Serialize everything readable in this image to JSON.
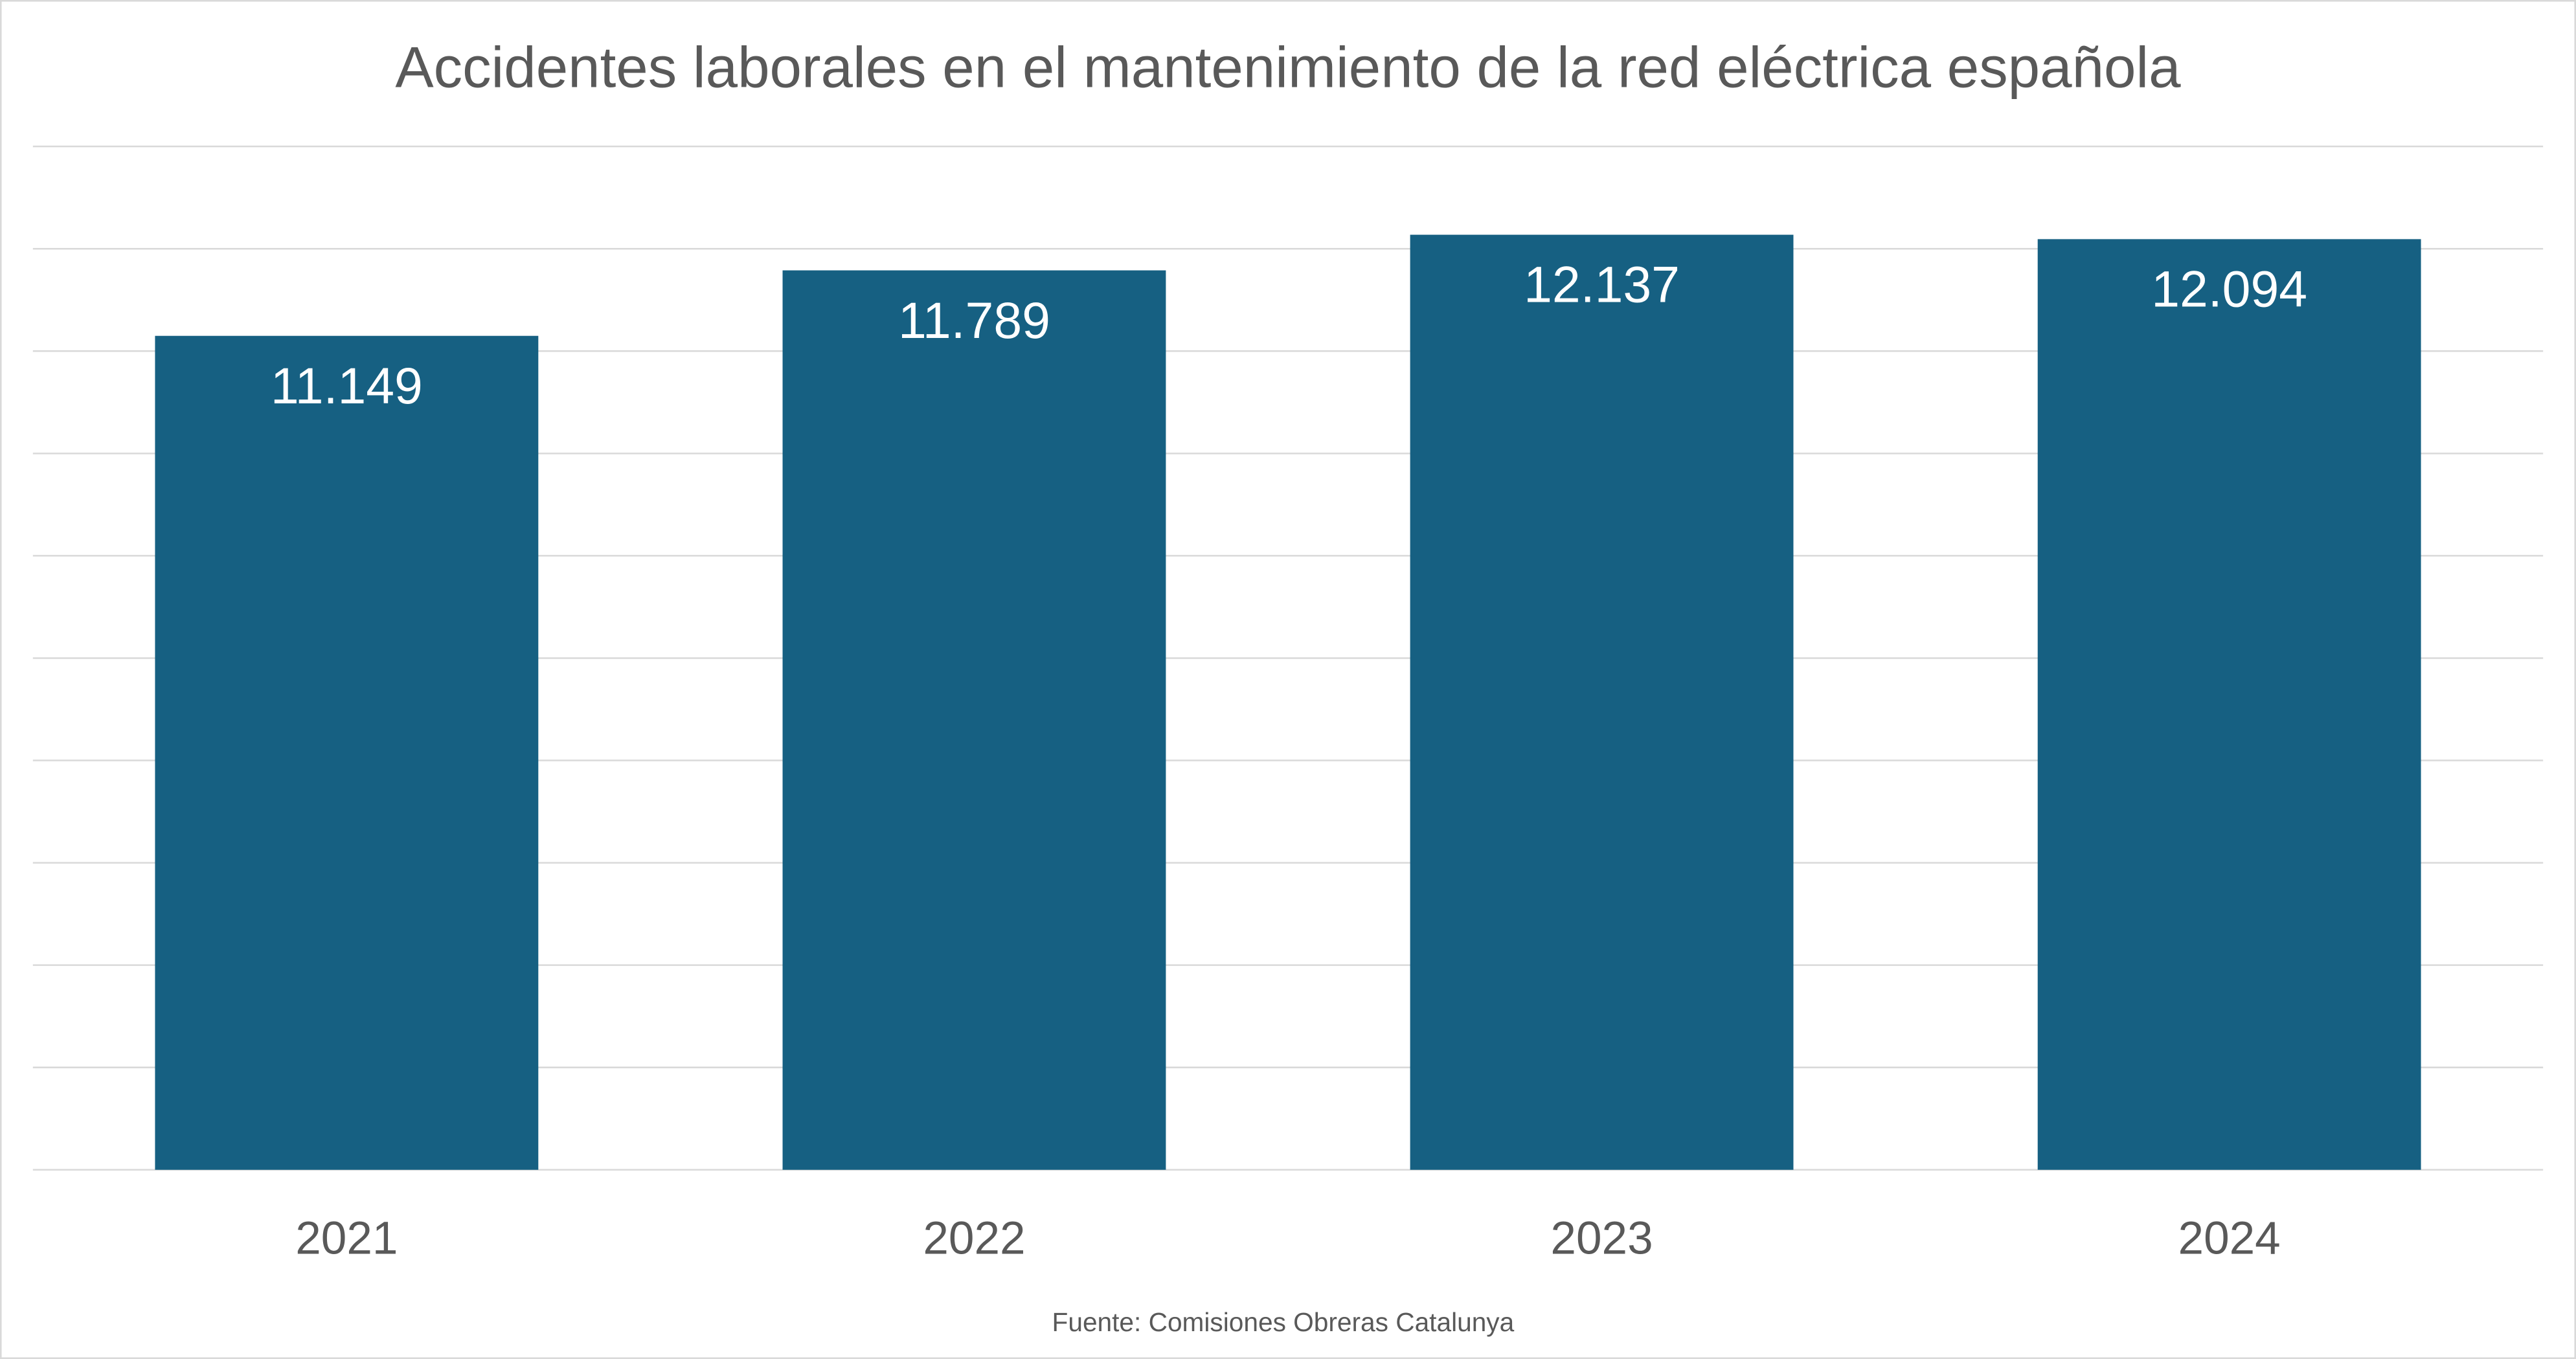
{
  "chart_data": {
    "type": "bar",
    "title": "Accidentes laborales en el mantenimiento de la red eléctrica española",
    "categories": [
      "2021",
      "2022",
      "2023",
      "2024"
    ],
    "values": [
      11149,
      11789,
      12137,
      12094
    ],
    "data_labels": [
      "11.149",
      "11.789",
      "12.137",
      "12.094"
    ],
    "xlabel": "",
    "ylabel": "",
    "ylim": [
      3000,
      13000
    ],
    "ytick_step": 1000,
    "y_tick_labels_visible": false,
    "grid": true,
    "legend": "none",
    "source": "Fuente: Comisiones Obreras Catalunya",
    "colors": {
      "bar": "#166082",
      "grid": "#d9d9d9",
      "text": "#595959",
      "data_label": "#ffffff",
      "border": "#d9d9d9"
    }
  }
}
